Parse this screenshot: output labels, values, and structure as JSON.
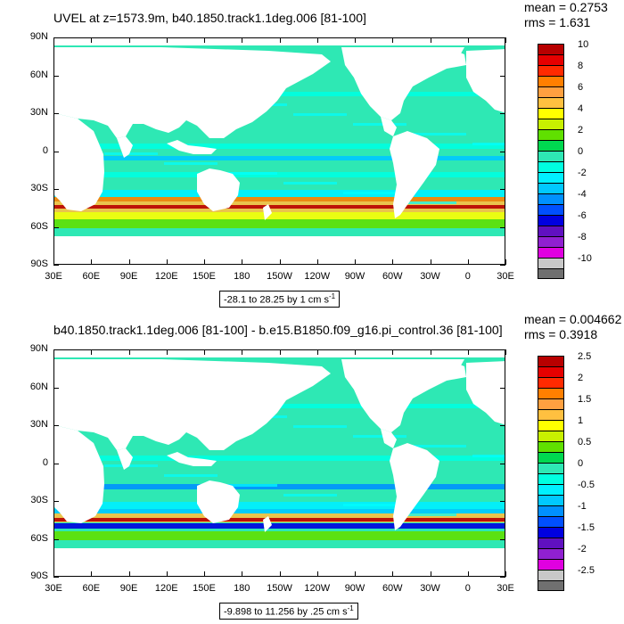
{
  "panels": [
    {
      "title": "UVEL at z=1573.9m, b40.1850.track1.1deg.006 [81-100]",
      "mean": "mean = 0.2753",
      "rms": "rms = 1.631",
      "contour_info": "-28.1 to 28.25 by 1 cm s",
      "contour_exp": "-1",
      "colorbar_labels": [
        "10",
        "8",
        "6",
        "4",
        "2",
        "0",
        "-2",
        "-4",
        "-6",
        "-8",
        "-10"
      ]
    },
    {
      "title": "b40.1850.track1.1deg.006 [81-100] - b.e15.B1850.f09_g16.pi_control.36 [81-100]",
      "mean": "mean = 0.004662",
      "rms": "rms = 0.3918",
      "contour_info": "-9.898 to 11.256 by .25 cm s",
      "contour_exp": "-1",
      "colorbar_labels": [
        "2.5",
        "2",
        "1.5",
        "1",
        "0.5",
        "0",
        "-0.5",
        "-1",
        "-1.5",
        "-2",
        "-2.5"
      ]
    }
  ],
  "axes": {
    "lat_labels": [
      "90N",
      "60N",
      "30N",
      "0",
      "30S",
      "60S",
      "90S"
    ],
    "lon_labels": [
      "30E",
      "60E",
      "90E",
      "120E",
      "150E",
      "180",
      "150W",
      "120W",
      "90W",
      "60W",
      "30W",
      "0",
      "30E"
    ]
  },
  "colors": {
    "ocean_base": "#2ee8b4",
    "cyan": "#00ffff",
    "land": "#ffffff",
    "colorbar": [
      "#b80000",
      "#e60000",
      "#ff2a00",
      "#ff7f00",
      "#ffa040",
      "#ffc040",
      "#ffff00",
      "#c8f000",
      "#60e000",
      "#00d850",
      "#2ee8b4",
      "#00ffe0",
      "#00f0ff",
      "#00c8ff",
      "#0090ff",
      "#0050ff",
      "#0000e0",
      "#6010c0",
      "#9020d0",
      "#e000e0",
      "#c8c8c8",
      "#707070"
    ]
  },
  "chart_data": [
    {
      "type": "heatmap",
      "title": "UVEL at z=1573.9m, b40.1850.track1.1deg.006 [81-100]",
      "mean": 0.2753,
      "rms": 1.631,
      "xlim": [
        "30E",
        "30E"
      ],
      "ylim": [
        "90S",
        "90N"
      ],
      "contour_min": -28.1,
      "contour_max": 28.25,
      "contour_interval": 1,
      "units": "cm s-1",
      "colorbar_range": [
        -10,
        10
      ]
    },
    {
      "type": "heatmap",
      "title": "b40.1850.track1.1deg.006 [81-100] - b.e15.B1850.f09_g16.pi_control.36 [81-100]",
      "mean": 0.004662,
      "rms": 0.3918,
      "xlim": [
        "30E",
        "30E"
      ],
      "ylim": [
        "90S",
        "90N"
      ],
      "contour_min": -9.898,
      "contour_max": 11.256,
      "contour_interval": 0.25,
      "units": "cm s-1",
      "colorbar_range": [
        -2.5,
        2.5
      ]
    }
  ]
}
